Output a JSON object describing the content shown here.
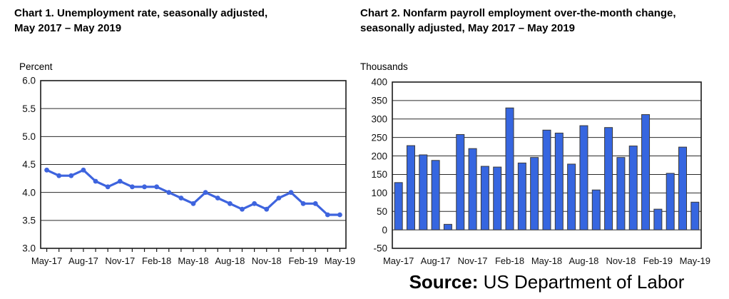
{
  "source": {
    "label": "Source:",
    "text": "US Department of Labor"
  },
  "chart_data": [
    {
      "id": "chart1",
      "type": "line",
      "title_line1": "Chart 1. Unemployment rate, seasonally adjusted,",
      "title_line2": "May 2017 – May 2019",
      "ylabel": "Percent",
      "x": [
        "May-17",
        "Jun-17",
        "Jul-17",
        "Aug-17",
        "Sep-17",
        "Oct-17",
        "Nov-17",
        "Dec-17",
        "Jan-18",
        "Feb-18",
        "Mar-18",
        "Apr-18",
        "May-18",
        "Jun-18",
        "Jul-18",
        "Aug-18",
        "Sep-18",
        "Oct-18",
        "Nov-18",
        "Dec-18",
        "Jan-19",
        "Feb-19",
        "Mar-19",
        "Apr-19",
        "May-19"
      ],
      "values": [
        4.4,
        4.3,
        4.3,
        4.4,
        4.2,
        4.1,
        4.2,
        4.1,
        4.1,
        4.1,
        4.0,
        3.9,
        3.8,
        4.0,
        3.9,
        3.8,
        3.7,
        3.8,
        3.7,
        3.9,
        4.0,
        3.8,
        3.8,
        3.6,
        3.6
      ],
      "ylim": [
        3.0,
        6.0
      ],
      "ytick_labels": [
        "6.0",
        "5.5",
        "5.0",
        "4.5",
        "4.0",
        "3.5",
        "3.0"
      ],
      "xtick_labels": [
        "May-17",
        "Aug-17",
        "Nov-17",
        "Feb-18",
        "May-18",
        "Aug-18",
        "Nov-18",
        "Feb-19",
        "May-19"
      ],
      "xtick_every": 3,
      "grid": true,
      "legend_position": "none",
      "line_color": "#3E64DE"
    },
    {
      "id": "chart2",
      "type": "bar",
      "title_line1": "Chart 2. Nonfarm payroll employment over-the-month change,",
      "title_line2": "seasonally adjusted, May 2017 – May 2019",
      "ylabel": "Thousands",
      "categories": [
        "May-17",
        "Jun-17",
        "Jul-17",
        "Aug-17",
        "Sep-17",
        "Oct-17",
        "Nov-17",
        "Dec-17",
        "Jan-18",
        "Feb-18",
        "Mar-18",
        "Apr-18",
        "May-18",
        "Jun-18",
        "Jul-18",
        "Aug-18",
        "Sep-18",
        "Oct-18",
        "Nov-18",
        "Dec-18",
        "Jan-19",
        "Feb-19",
        "Mar-19",
        "Apr-19",
        "May-19"
      ],
      "values": [
        128,
        228,
        203,
        188,
        15,
        258,
        220,
        172,
        170,
        330,
        181,
        196,
        270,
        262,
        178,
        282,
        108,
        277,
        196,
        227,
        312,
        56,
        153,
        224,
        75
      ],
      "ylim": [
        -50,
        400
      ],
      "ytick_labels": [
        "400",
        "350",
        "300",
        "250",
        "200",
        "150",
        "100",
        "50",
        "0",
        "-50"
      ],
      "xtick_labels": [
        "May-17",
        "Aug-17",
        "Nov-17",
        "Feb-18",
        "May-18",
        "Aug-18",
        "Nov-18",
        "Feb-19",
        "May-19"
      ],
      "xtick_every": 3,
      "grid": true,
      "legend_position": "none",
      "bar_color": "#3666E0",
      "bar_border_color": "#3a3a3a"
    }
  ]
}
